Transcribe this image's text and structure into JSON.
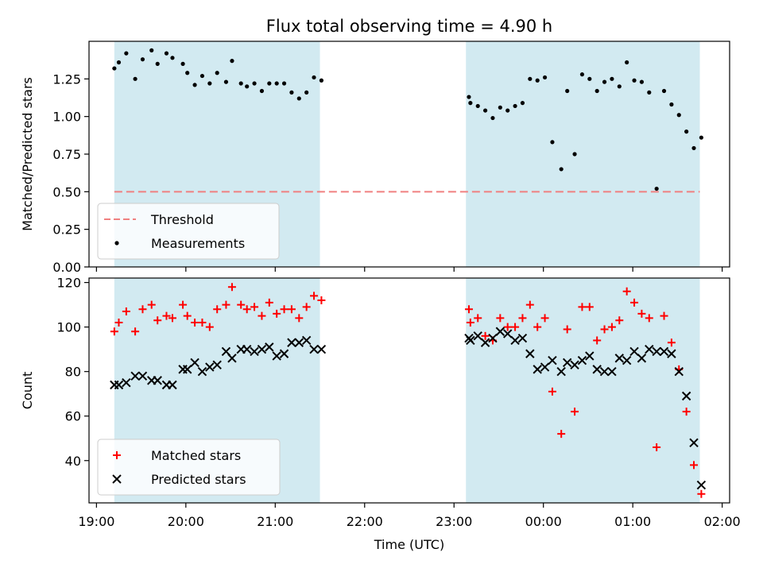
{
  "title": "Flux total observing time = 4.90 h",
  "colors": {
    "shade": "#add8e6",
    "threshold": "#f08080",
    "measurement": "#000000",
    "matched": "#ff0000",
    "predicted": "#000000"
  },
  "chart_data": [
    {
      "type": "scatter",
      "panel": "top",
      "title": "Flux total observing time = 4.90 h",
      "ylabel": "Matched/Predicted stars",
      "ylim": [
        0,
        1.5
      ],
      "yticks": [
        0.0,
        0.25,
        0.5,
        0.75,
        1.0,
        1.25
      ],
      "ytick_labels": [
        "0.00",
        "0.25",
        "0.50",
        "0.75",
        "1.00",
        "1.25"
      ],
      "xlim": [
        "18:55",
        "02:05"
      ],
      "legend_position": "lower-left",
      "shaded_intervals": [
        [
          "19:12",
          "21:30"
        ],
        [
          "23:08",
          "01:45"
        ]
      ],
      "threshold": {
        "name": "Threshold",
        "value": 0.5,
        "x_range": [
          "19:12",
          "01:45"
        ],
        "style": "dashed"
      },
      "series": [
        {
          "name": "Measurements",
          "marker": "dot",
          "points": [
            [
              "19:12",
              1.32
            ],
            [
              "19:15",
              1.36
            ],
            [
              "19:20",
              1.42
            ],
            [
              "19:26",
              1.25
            ],
            [
              "19:31",
              1.38
            ],
            [
              "19:37",
              1.44
            ],
            [
              "19:41",
              1.35
            ],
            [
              "19:47",
              1.42
            ],
            [
              "19:51",
              1.39
            ],
            [
              "19:58",
              1.35
            ],
            [
              "20:01",
              1.29
            ],
            [
              "20:06",
              1.21
            ],
            [
              "20:11",
              1.27
            ],
            [
              "20:16",
              1.22
            ],
            [
              "20:21",
              1.29
            ],
            [
              "20:27",
              1.23
            ],
            [
              "20:31",
              1.37
            ],
            [
              "20:37",
              1.22
            ],
            [
              "20:41",
              1.2
            ],
            [
              "20:46",
              1.22
            ],
            [
              "20:51",
              1.17
            ],
            [
              "20:56",
              1.22
            ],
            [
              "21:01",
              1.22
            ],
            [
              "21:06",
              1.22
            ],
            [
              "21:11",
              1.16
            ],
            [
              "21:16",
              1.12
            ],
            [
              "21:21",
              1.16
            ],
            [
              "21:26",
              1.26
            ],
            [
              "21:31",
              1.24
            ],
            [
              "23:10",
              1.13
            ],
            [
              "23:11",
              1.09
            ],
            [
              "23:16",
              1.07
            ],
            [
              "23:21",
              1.04
            ],
            [
              "23:26",
              0.99
            ],
            [
              "23:31",
              1.06
            ],
            [
              "23:36",
              1.04
            ],
            [
              "23:41",
              1.07
            ],
            [
              "23:46",
              1.09
            ],
            [
              "23:51",
              1.25
            ],
            [
              "23:56",
              1.24
            ],
            [
              "00:01",
              1.26
            ],
            [
              "00:06",
              0.83
            ],
            [
              "00:12",
              0.65
            ],
            [
              "00:16",
              1.17
            ],
            [
              "00:21",
              0.75
            ],
            [
              "00:26",
              1.28
            ],
            [
              "00:31",
              1.25
            ],
            [
              "00:36",
              1.17
            ],
            [
              "00:41",
              1.23
            ],
            [
              "00:46",
              1.25
            ],
            [
              "00:51",
              1.2
            ],
            [
              "00:56",
              1.36
            ],
            [
              "01:01",
              1.24
            ],
            [
              "01:06",
              1.23
            ],
            [
              "01:11",
              1.16
            ],
            [
              "01:16",
              0.52
            ],
            [
              "01:21",
              1.17
            ],
            [
              "01:26",
              1.08
            ],
            [
              "01:31",
              1.01
            ],
            [
              "01:36",
              0.9
            ],
            [
              "01:41",
              0.79
            ],
            [
              "01:46",
              0.86
            ]
          ]
        }
      ]
    },
    {
      "type": "scatter",
      "panel": "bottom",
      "xlabel": "Time (UTC)",
      "ylabel": "Count",
      "ylim": [
        21,
        122
      ],
      "yticks": [
        40,
        60,
        80,
        100,
        120
      ],
      "ytick_labels": [
        "40",
        "60",
        "80",
        "100",
        "120"
      ],
      "xlim": [
        "18:55",
        "02:05"
      ],
      "xticks": [
        "19:00",
        "20:00",
        "21:00",
        "22:00",
        "23:00",
        "00:00",
        "01:00",
        "02:00"
      ],
      "legend_position": "lower-left",
      "shaded_intervals": [
        [
          "19:12",
          "21:30"
        ],
        [
          "23:08",
          "01:45"
        ]
      ],
      "series": [
        {
          "name": "Matched stars",
          "marker": "plus",
          "points": [
            [
              "19:12",
              98
            ],
            [
              "19:15",
              102
            ],
            [
              "19:20",
              107
            ],
            [
              "19:26",
              98
            ],
            [
              "19:31",
              108
            ],
            [
              "19:37",
              110
            ],
            [
              "19:41",
              103
            ],
            [
              "19:47",
              105
            ],
            [
              "19:51",
              104
            ],
            [
              "19:58",
              110
            ],
            [
              "20:01",
              105
            ],
            [
              "20:06",
              102
            ],
            [
              "20:11",
              102
            ],
            [
              "20:16",
              100
            ],
            [
              "20:21",
              108
            ],
            [
              "20:27",
              110
            ],
            [
              "20:31",
              118
            ],
            [
              "20:37",
              110
            ],
            [
              "20:41",
              108
            ],
            [
              "20:46",
              109
            ],
            [
              "20:51",
              105
            ],
            [
              "20:56",
              111
            ],
            [
              "21:01",
              106
            ],
            [
              "21:06",
              108
            ],
            [
              "21:11",
              108
            ],
            [
              "21:16",
              104
            ],
            [
              "21:21",
              109
            ],
            [
              "21:26",
              114
            ],
            [
              "21:31",
              112
            ],
            [
              "23:10",
              108
            ],
            [
              "23:11",
              102
            ],
            [
              "23:16",
              104
            ],
            [
              "23:21",
              96
            ],
            [
              "23:26",
              94
            ],
            [
              "23:31",
              104
            ],
            [
              "23:36",
              100
            ],
            [
              "23:41",
              100
            ],
            [
              "23:46",
              104
            ],
            [
              "23:51",
              110
            ],
            [
              "23:56",
              100
            ],
            [
              "00:01",
              104
            ],
            [
              "00:06",
              71
            ],
            [
              "00:12",
              52
            ],
            [
              "00:16",
              99
            ],
            [
              "00:21",
              62
            ],
            [
              "00:26",
              109
            ],
            [
              "00:31",
              109
            ],
            [
              "00:36",
              94
            ],
            [
              "00:41",
              99
            ],
            [
              "00:46",
              100
            ],
            [
              "00:51",
              103
            ],
            [
              "00:56",
              116
            ],
            [
              "01:01",
              111
            ],
            [
              "01:06",
              106
            ],
            [
              "01:11",
              104
            ],
            [
              "01:16",
              46
            ],
            [
              "01:21",
              105
            ],
            [
              "01:26",
              93
            ],
            [
              "01:31",
              81
            ],
            [
              "01:36",
              62
            ],
            [
              "01:41",
              38
            ],
            [
              "01:46",
              25
            ]
          ]
        },
        {
          "name": "Predicted stars",
          "marker": "cross",
          "points": [
            [
              "19:12",
              74
            ],
            [
              "19:15",
              74
            ],
            [
              "19:20",
              75
            ],
            [
              "19:26",
              78
            ],
            [
              "19:31",
              78
            ],
            [
              "19:37",
              76
            ],
            [
              "19:41",
              76
            ],
            [
              "19:47",
              74
            ],
            [
              "19:51",
              74
            ],
            [
              "19:58",
              81
            ],
            [
              "20:01",
              81
            ],
            [
              "20:06",
              84
            ],
            [
              "20:11",
              80
            ],
            [
              "20:16",
              82
            ],
            [
              "20:21",
              83
            ],
            [
              "20:27",
              89
            ],
            [
              "20:31",
              86
            ],
            [
              "20:37",
              90
            ],
            [
              "20:41",
              90
            ],
            [
              "20:46",
              89
            ],
            [
              "20:51",
              90
            ],
            [
              "20:56",
              91
            ],
            [
              "21:01",
              87
            ],
            [
              "21:06",
              88
            ],
            [
              "21:11",
              93
            ],
            [
              "21:16",
              93
            ],
            [
              "21:21",
              94
            ],
            [
              "21:26",
              90
            ],
            [
              "21:31",
              90
            ],
            [
              "23:10",
              95
            ],
            [
              "23:11",
              94
            ],
            [
              "23:16",
              96
            ],
            [
              "23:21",
              93
            ],
            [
              "23:26",
              95
            ],
            [
              "23:31",
              98
            ],
            [
              "23:36",
              97
            ],
            [
              "23:41",
              94
            ],
            [
              "23:46",
              95
            ],
            [
              "23:51",
              88
            ],
            [
              "23:56",
              81
            ],
            [
              "00:01",
              82
            ],
            [
              "00:06",
              85
            ],
            [
              "00:12",
              80
            ],
            [
              "00:16",
              84
            ],
            [
              "00:21",
              83
            ],
            [
              "00:26",
              85
            ],
            [
              "00:31",
              87
            ],
            [
              "00:36",
              81
            ],
            [
              "00:41",
              80
            ],
            [
              "00:46",
              80
            ],
            [
              "00:51",
              86
            ],
            [
              "00:56",
              85
            ],
            [
              "01:01",
              89
            ],
            [
              "01:06",
              86
            ],
            [
              "01:11",
              90
            ],
            [
              "01:16",
              89
            ],
            [
              "01:21",
              89
            ],
            [
              "01:26",
              88
            ],
            [
              "01:31",
              80
            ],
            [
              "01:36",
              69
            ],
            [
              "01:41",
              48
            ],
            [
              "01:46",
              29
            ]
          ]
        }
      ]
    }
  ]
}
